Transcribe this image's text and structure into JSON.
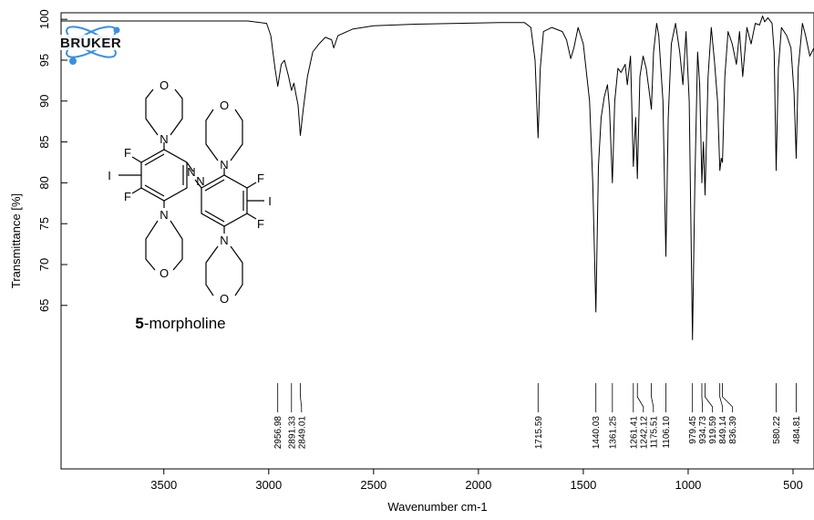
{
  "chart_data": {
    "type": "line",
    "xlabel": "Wavenumber cm-1",
    "ylabel": "Transmittance [%]",
    "xlim": [
      3990,
      400
    ],
    "ylim": [
      45,
      100.8
    ],
    "x_ticks": [
      3500,
      3000,
      2500,
      2000,
      1500,
      1000,
      500
    ],
    "y_ticks": [
      65,
      70,
      75,
      80,
      85,
      90,
      95,
      100
    ],
    "grid": false,
    "series": [
      {
        "points": [
          [
            3990,
            99.8
          ],
          [
            3600,
            99.8
          ],
          [
            3100,
            99.8
          ],
          [
            3010,
            99.5
          ],
          [
            2990,
            98.0
          ],
          [
            2970,
            94.0
          ],
          [
            2956.98,
            91.8
          ],
          [
            2940,
            94.5
          ],
          [
            2925,
            95.0
          ],
          [
            2905,
            93.0
          ],
          [
            2891.33,
            91.3
          ],
          [
            2880,
            92.2
          ],
          [
            2870,
            90.8
          ],
          [
            2860,
            89.5
          ],
          [
            2849.01,
            85.8
          ],
          [
            2835,
            89.0
          ],
          [
            2815,
            93.0
          ],
          [
            2790,
            96.0
          ],
          [
            2760,
            97.0
          ],
          [
            2730,
            97.8
          ],
          [
            2700,
            97.5
          ],
          [
            2690,
            96.5
          ],
          [
            2670,
            98.0
          ],
          [
            2600,
            98.8
          ],
          [
            2500,
            99.2
          ],
          [
            2300,
            99.4
          ],
          [
            2100,
            99.5
          ],
          [
            1900,
            99.6
          ],
          [
            1780,
            99.6
          ],
          [
            1750,
            99.0
          ],
          [
            1730,
            95.0
          ],
          [
            1715.59,
            85.5
          ],
          [
            1705,
            94.0
          ],
          [
            1690,
            98.5
          ],
          [
            1650,
            99.0
          ],
          [
            1600,
            98.5
          ],
          [
            1580,
            97.5
          ],
          [
            1560,
            95.2
          ],
          [
            1545,
            96.5
          ],
          [
            1525,
            99.0
          ],
          [
            1500,
            97.0
          ],
          [
            1470,
            90.0
          ],
          [
            1455,
            80.0
          ],
          [
            1440.03,
            64.2
          ],
          [
            1428,
            82.0
          ],
          [
            1415,
            88.0
          ],
          [
            1400,
            90.5
          ],
          [
            1385,
            92.0
          ],
          [
            1375,
            89.0
          ],
          [
            1361.25,
            80.0
          ],
          [
            1350,
            90.0
          ],
          [
            1335,
            94.0
          ],
          [
            1320,
            93.5
          ],
          [
            1300,
            94.5
          ],
          [
            1290,
            92.0
          ],
          [
            1275,
            95.5
          ],
          [
            1261.41,
            82.0
          ],
          [
            1250,
            88.0
          ],
          [
            1242.12,
            80.5
          ],
          [
            1230,
            93.0
          ],
          [
            1215,
            95.5
          ],
          [
            1200,
            94.0
          ],
          [
            1185,
            91.0
          ],
          [
            1175.51,
            89.0
          ],
          [
            1165,
            96.0
          ],
          [
            1150,
            99.5
          ],
          [
            1140,
            98.0
          ],
          [
            1120,
            90.0
          ],
          [
            1106.1,
            71.0
          ],
          [
            1095,
            88.0
          ],
          [
            1080,
            97.0
          ],
          [
            1060,
            99.5
          ],
          [
            1040,
            96.0
          ],
          [
            1025,
            92.0
          ],
          [
            1010,
            98.5
          ],
          [
            995,
            90.0
          ],
          [
            979.45,
            60.8
          ],
          [
            968,
            80.0
          ],
          [
            955,
            96.0
          ],
          [
            945,
            92.0
          ],
          [
            934.73,
            80.0
          ],
          [
            927,
            85.0
          ],
          [
            919.59,
            78.5
          ],
          [
            905,
            93.0
          ],
          [
            890,
            99.0
          ],
          [
            875,
            95.0
          ],
          [
            860,
            90.0
          ],
          [
            849.14,
            81.5
          ],
          [
            842,
            83.0
          ],
          [
            836.39,
            82.5
          ],
          [
            825,
            93.0
          ],
          [
            810,
            98.5
          ],
          [
            790,
            97.0
          ],
          [
            770,
            94.5
          ],
          [
            755,
            98.5
          ],
          [
            740,
            93.0
          ],
          [
            720,
            99.0
          ],
          [
            700,
            97.0
          ],
          [
            680,
            99.5
          ],
          [
            660,
            99.3
          ],
          [
            645,
            100.4
          ],
          [
            635,
            99.7
          ],
          [
            620,
            100.2
          ],
          [
            600,
            99.5
          ],
          [
            590,
            96.0
          ],
          [
            580.22,
            81.5
          ],
          [
            570,
            94.0
          ],
          [
            555,
            99.0
          ],
          [
            530,
            98.0
          ],
          [
            510,
            96.5
          ],
          [
            495,
            91.0
          ],
          [
            484.81,
            83.0
          ],
          [
            475,
            94.0
          ],
          [
            455,
            99.5
          ],
          [
            440,
            98.0
          ],
          [
            420,
            95.5
          ],
          [
            400,
            96.5
          ]
        ]
      }
    ],
    "peak_labels": [
      "2956.98",
      "2891.33",
      "2849.01",
      "1715.59",
      "1440.03",
      "1361.25",
      "1261.41",
      "1242.12",
      "1175.51",
      "1106.10",
      "979.45",
      "934.73",
      "919.59",
      "849.14",
      "836.39",
      "580.22",
      "484.81"
    ],
    "peak_values": [
      2956.98,
      2891.33,
      2849.01,
      1715.59,
      1440.03,
      1361.25,
      1261.41,
      1242.12,
      1175.51,
      1106.1,
      979.45,
      934.73,
      919.59,
      849.14,
      836.39,
      580.22,
      484.81
    ]
  },
  "logo": {
    "text": "BRUKER",
    "color": "#3b8fe0"
  },
  "molecule": {
    "atoms": [
      "O",
      "N",
      "F",
      "I",
      "F",
      "N",
      "O",
      "O",
      "N",
      "F",
      "I",
      "F",
      "N",
      "O",
      "N",
      "N"
    ],
    "caption_bold": "5",
    "caption_rest": "-morpholine"
  }
}
